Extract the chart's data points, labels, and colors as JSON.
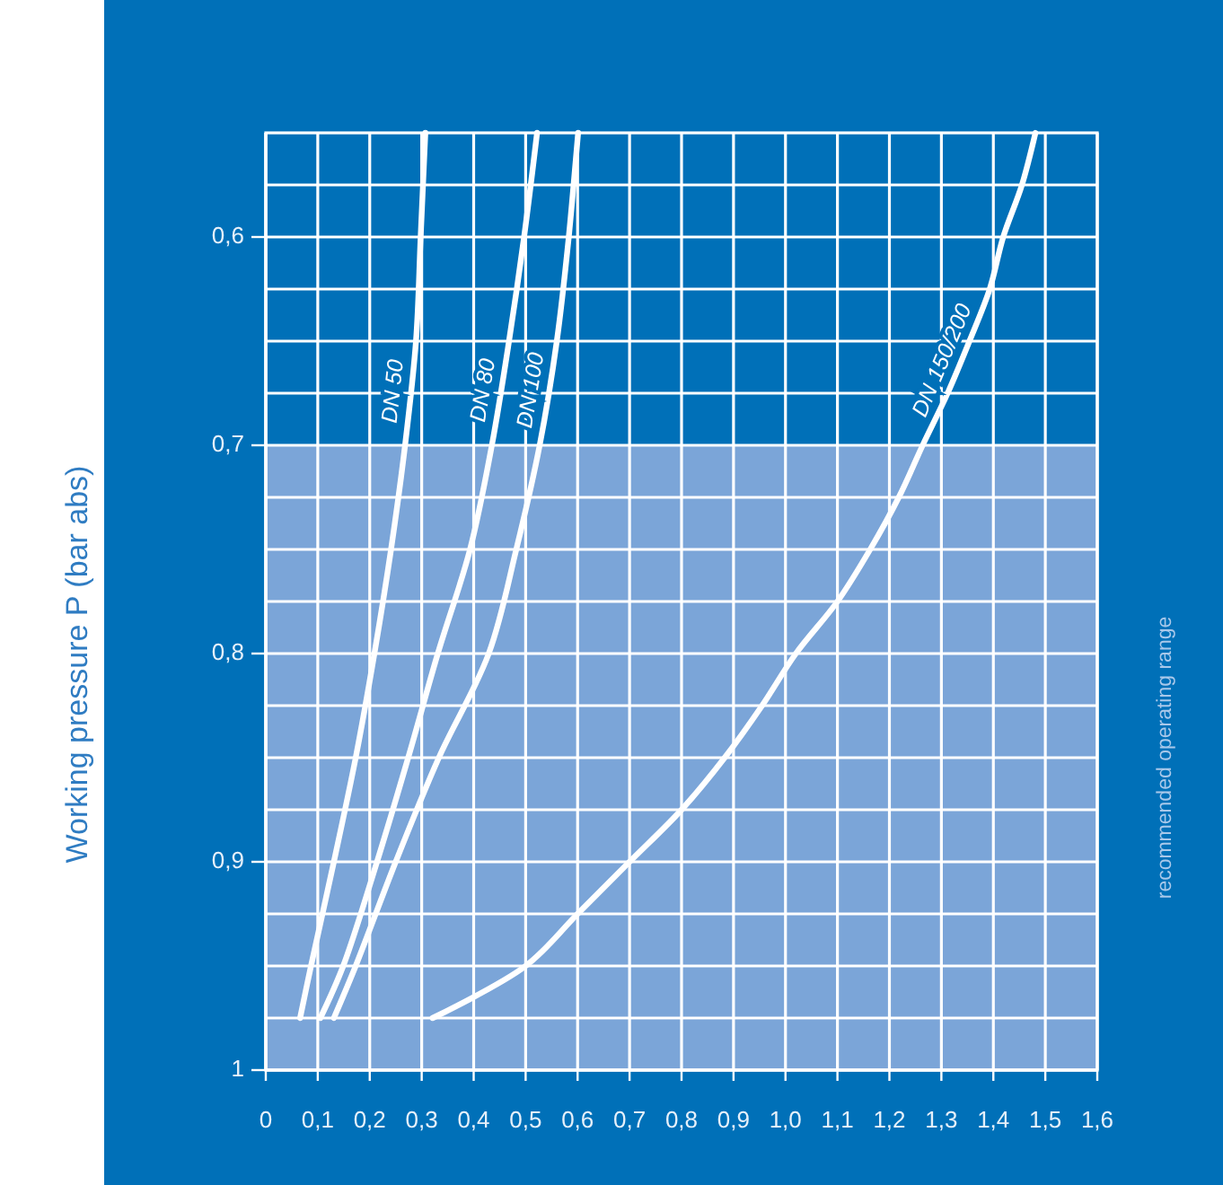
{
  "chart_data": {
    "type": "line",
    "ylabel": "Working pressure P (bar abs)",
    "xlim": [
      0,
      1.6
    ],
    "xticks": [
      0,
      {
        "value": 0.1,
        "label": "0,1"
      },
      {
        "value": 0.2,
        "label": "0,2"
      },
      {
        "value": 0.3,
        "label": "0,3"
      },
      {
        "value": 0.4,
        "label": "0,4"
      },
      {
        "value": 0.5,
        "label": "0,5"
      },
      {
        "value": 0.6,
        "label": "0,6"
      },
      {
        "value": 0.7,
        "label": "0,7"
      },
      {
        "value": 0.8,
        "label": "0,8"
      },
      {
        "value": 0.9,
        "label": "0,9"
      },
      {
        "value": 1,
        "label": "1,0"
      },
      {
        "value": 1.1,
        "label": "1,1"
      },
      {
        "value": 1.2,
        "label": "1,2"
      },
      {
        "value": 1.3,
        "label": "1,3"
      },
      {
        "value": 1.4,
        "label": "1,4"
      },
      {
        "value": 1.5,
        "label": "1,5"
      },
      {
        "value": 1.6,
        "label": "1,6"
      }
    ],
    "ylim": [
      1,
      0.55
    ],
    "yticks": [
      {
        "value": 0.575,
        "label": null
      },
      {
        "value": 0.6,
        "label": "0,6"
      },
      {
        "value": 0.625,
        "label": null
      },
      {
        "value": 0.65,
        "label": null
      },
      {
        "value": 0.675,
        "label": null
      },
      {
        "value": 0.7,
        "label": "0,7"
      },
      {
        "value": 0.725,
        "label": null
      },
      {
        "value": 0.75,
        "label": null
      },
      {
        "value": 0.775,
        "label": null
      },
      {
        "value": 0.8,
        "label": "0,8"
      },
      {
        "value": 0.825,
        "label": null
      },
      {
        "value": 0.85,
        "label": null
      },
      {
        "value": 0.875,
        "label": null
      },
      {
        "value": 0.9,
        "label": "0,9"
      },
      {
        "value": 0.925,
        "label": null
      },
      {
        "value": 0.95,
        "label": null
      },
      {
        "value": 0.975,
        "label": null
      },
      1
    ],
    "grid": true,
    "legend": false,
    "marker": "none",
    "line_style": "solid",
    "bands": [
      {
        "axis": "y",
        "from": 0.7,
        "to": 1,
        "label": "recommended operating range",
        "color": "#7ba5d8"
      }
    ],
    "series": [
      {
        "name": "DN 50",
        "color": "#ffffff",
        "x": [
          0.066,
          0.087,
          0.131,
          0.173,
          0.209,
          0.241,
          0.268,
          0.289,
          0.298,
          0.307
        ],
        "values": [
          0.975,
          0.95,
          0.9,
          0.85,
          0.8,
          0.75,
          0.7,
          0.65,
          0.6,
          0.55
        ]
      },
      {
        "name": "DN 80",
        "color": "#ffffff",
        "x": [
          0.105,
          0.149,
          0.214,
          0.274,
          0.331,
          0.393,
          0.435,
          0.468,
          0.497,
          0.522
        ],
        "values": [
          0.975,
          0.95,
          0.9,
          0.85,
          0.8,
          0.75,
          0.7,
          0.65,
          0.6,
          0.55
        ]
      },
      {
        "name": "DN 100",
        "color": "#ffffff",
        "x": [
          0.131,
          0.173,
          0.25,
          0.333,
          0.429,
          0.482,
          0.527,
          0.56,
          0.583,
          0.601
        ],
        "values": [
          0.975,
          0.95,
          0.9,
          0.85,
          0.8,
          0.75,
          0.7,
          0.65,
          0.6,
          0.55
        ]
      },
      {
        "name": "DN 150/200",
        "color": "#ffffff",
        "x": [
          0.321,
          0.5,
          0.6,
          0.7,
          0.8,
          0.883,
          0.955,
          1.02,
          1.1,
          1.163,
          1.218,
          1.264,
          1.312,
          1.354,
          1.393,
          1.419,
          1.455,
          1.481
        ],
        "values": [
          0.975,
          0.95,
          0.925,
          0.9,
          0.875,
          0.85,
          0.825,
          0.8,
          0.775,
          0.75,
          0.725,
          0.7,
          0.675,
          0.65,
          0.625,
          0.6,
          0.575,
          0.55
        ]
      }
    ]
  }
}
